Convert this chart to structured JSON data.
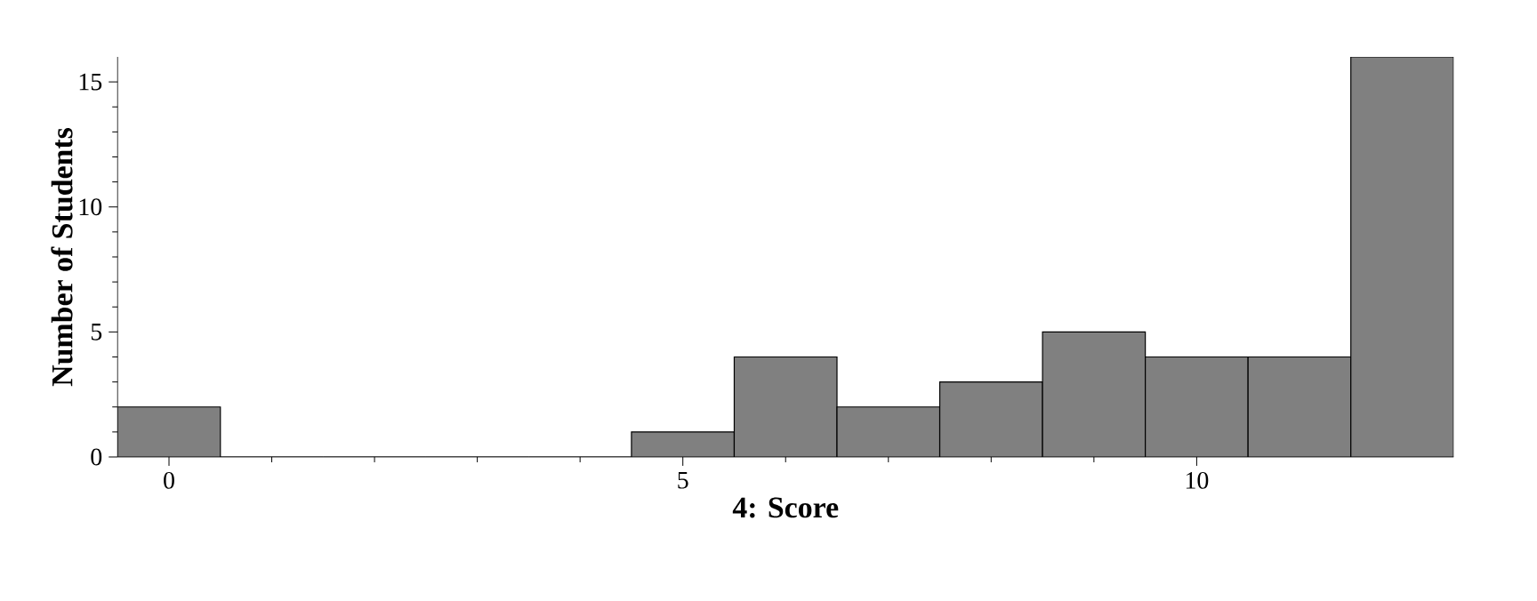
{
  "chart_data": {
    "type": "histogram",
    "xlabel": "4: Score",
    "ylabel": "Number of Students",
    "bins": [
      -0.5,
      0.5,
      1.5,
      2.5,
      3.5,
      4.5,
      5.5,
      6.5,
      7.5,
      8.5,
      9.5,
      10.5,
      11.5,
      12.5
    ],
    "values": [
      2,
      0,
      0,
      0,
      0,
      1,
      4,
      2,
      3,
      5,
      4,
      4,
      16
    ],
    "color": "#808080",
    "xlim": [
      -0.5,
      12.5
    ],
    "ylim": [
      0,
      16
    ],
    "xticks": [
      0,
      5,
      10
    ],
    "yticks": [
      0,
      5,
      10,
      15
    ]
  }
}
